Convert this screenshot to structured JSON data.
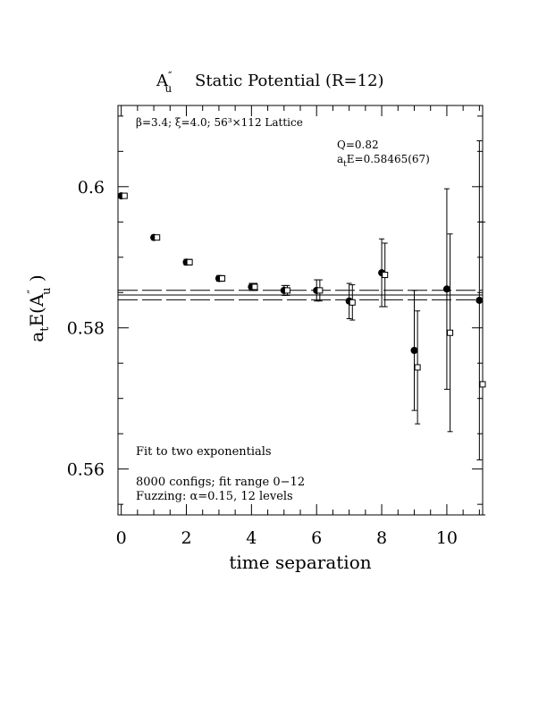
{
  "chart_data": {
    "type": "scatter",
    "title": "Static Potential (R=12)",
    "title_symbol": {
      "base": "A",
      "prime": "″",
      "sub": "u"
    },
    "xlabel": "time separation",
    "ylabel": {
      "a": "a",
      "a_sub": "t",
      "e": "E(A",
      "prime": "″",
      "u_sub": "u",
      "close": " )"
    },
    "xlim": [
      -0.1,
      11.1
    ],
    "ylim": [
      0.5535,
      0.6115
    ],
    "xticks": [
      0,
      2,
      4,
      6,
      8,
      10
    ],
    "xtick_labels": [
      "0",
      "2",
      "4",
      "6",
      "8",
      "10"
    ],
    "yticks": [
      0.56,
      0.58,
      0.6
    ],
    "ytick_labels": [
      "0.56",
      "0.58",
      "0.6"
    ],
    "annotations": {
      "lattice": "β=3.4; ξ=4.0; 56³×112 Lattice",
      "q": "Q=0.82",
      "energy_prefix": "a",
      "energy_sub": "t",
      "energy_value": "E=0.58465(67)",
      "fit": "Fit to two exponentials",
      "configs": "8000 configs; fit range 0−12",
      "fuzzing": "Fuzzing: α=0.15, 12 levels"
    },
    "fit": {
      "center": 0.58465,
      "error": 0.00067
    },
    "series": [
      {
        "marker": "filled-circle",
        "x": [
          0,
          1,
          2,
          3,
          4,
          5,
          6,
          7,
          8,
          9,
          10,
          11
        ],
        "y": [
          0.5987,
          0.5928,
          0.5893,
          0.587,
          0.5858,
          0.5853,
          0.5853,
          0.5838,
          0.5878,
          0.5768,
          0.5855,
          0.5839
        ],
        "err": [
          0.0003,
          0.0003,
          0.0004,
          0.0004,
          0.0005,
          0.0007,
          0.0015,
          0.0025,
          0.0048,
          0.0085,
          0.0142,
          0.0226
        ]
      },
      {
        "marker": "open-square",
        "x": [
          0.1,
          1.1,
          2.1,
          3.1,
          4.1,
          5.1,
          6.1,
          7.1,
          8.1,
          9.1,
          10.1,
          11.1
        ],
        "y": [
          0.5987,
          0.5928,
          0.5893,
          0.587,
          0.5858,
          0.5853,
          0.5853,
          0.5836,
          0.5875,
          0.5744,
          0.5793,
          0.572
        ],
        "err": [
          0.0003,
          0.0003,
          0.0004,
          0.0004,
          0.0005,
          0.0007,
          0.0015,
          0.0025,
          0.0045,
          0.008,
          0.014,
          0.023
        ]
      }
    ]
  }
}
